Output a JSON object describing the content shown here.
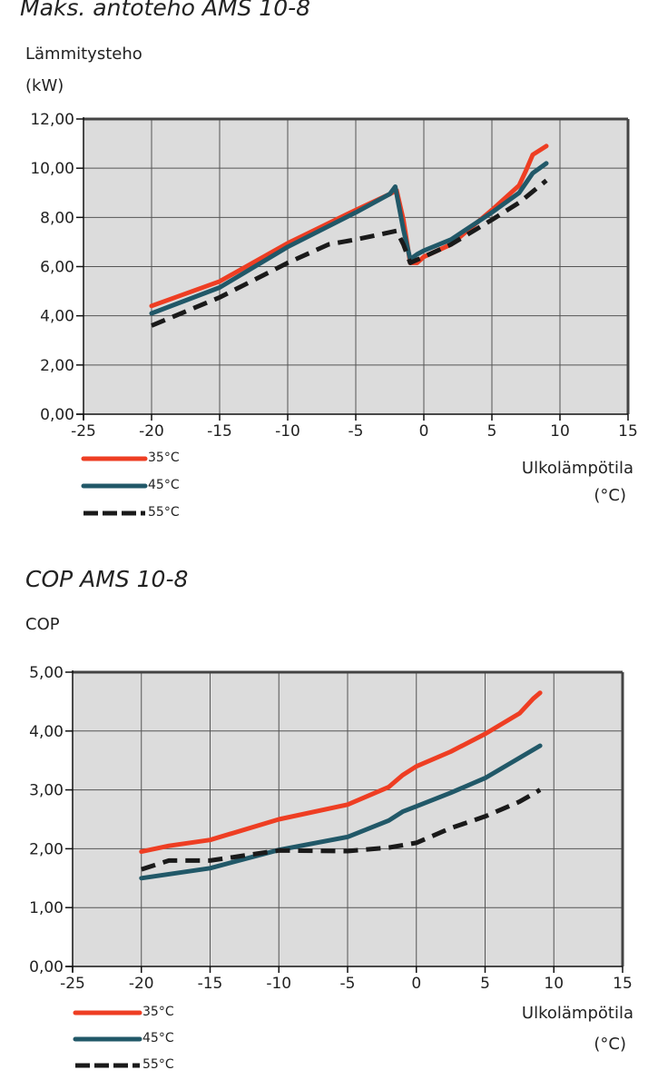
{
  "chart_data": [
    {
      "type": "line",
      "title": "Maks. antoteho AMS 10-8",
      "ylabel": "Lämmitysteho",
      "ylabel_unit": "(kW)",
      "xlabel": "Ulkolämpötila",
      "xlabel_unit": "(°C)",
      "xlim": [
        -25,
        15
      ],
      "ylim": [
        0,
        12
      ],
      "x_ticks": [
        "-25",
        "-20",
        "-15",
        "-10",
        "-5",
        "0",
        "5",
        "10",
        "15"
      ],
      "y_ticks": [
        "0,00",
        "2,00",
        "4,00",
        "6,00",
        "8,00",
        "10,00",
        "12,00"
      ],
      "grid": true,
      "legend_position": "bottom-left",
      "series": [
        {
          "name": "35°C",
          "color": "#ee3e23",
          "style": "solid",
          "x": [
            -20,
            -15,
            -10,
            -5,
            -2.5,
            -2,
            -1.5,
            -1,
            -0.5,
            0,
            2,
            5,
            7,
            7.5,
            8,
            9
          ],
          "y": [
            4.4,
            5.4,
            6.95,
            8.3,
            8.95,
            9.1,
            7.9,
            6.15,
            6.15,
            6.4,
            6.9,
            8.3,
            9.3,
            9.9,
            10.55,
            10.9
          ]
        },
        {
          "name": "45°C",
          "color": "#215868",
          "style": "solid",
          "x": [
            -20,
            -15,
            -10,
            -5,
            -2.5,
            -2.1,
            -1.5,
            -1,
            -0.5,
            0,
            2,
            5,
            7,
            8,
            9
          ],
          "y": [
            4.1,
            5.15,
            6.8,
            8.2,
            8.95,
            9.25,
            7.5,
            6.3,
            6.5,
            6.65,
            7.1,
            8.2,
            9.0,
            9.8,
            10.2
          ]
        },
        {
          "name": "55°C",
          "color": "#1a1a1a",
          "style": "dashed",
          "x": [
            -20,
            -15,
            -10,
            -7,
            -5,
            -2,
            -1.5,
            -1,
            0,
            2,
            5,
            7,
            9
          ],
          "y": [
            3.6,
            4.75,
            6.15,
            6.9,
            7.1,
            7.45,
            6.9,
            6.15,
            6.4,
            6.9,
            7.9,
            8.6,
            9.5
          ]
        }
      ]
    },
    {
      "type": "line",
      "title": "COP AMS 10-8",
      "ylabel": "COP",
      "xlabel": "Ulkolämpötila",
      "xlabel_unit": "(°C)",
      "xlim": [
        -25,
        15
      ],
      "ylim": [
        0,
        5
      ],
      "x_ticks": [
        "-25",
        "-20",
        "-15",
        "-10",
        "-5",
        "0",
        "5",
        "10",
        "15"
      ],
      "y_ticks": [
        "0,00",
        "1,00",
        "2,00",
        "3,00",
        "4,00",
        "5,00"
      ],
      "grid": true,
      "legend_position": "bottom-left",
      "series": [
        {
          "name": "35°C",
          "color": "#ee3e23",
          "style": "solid",
          "x": [
            -20,
            -18,
            -15,
            -10,
            -5,
            -2,
            -1,
            0,
            2.5,
            5,
            7.5,
            8.5,
            9
          ],
          "y": [
            1.95,
            2.05,
            2.15,
            2.5,
            2.75,
            3.05,
            3.25,
            3.4,
            3.65,
            3.95,
            4.3,
            4.55,
            4.65
          ]
        },
        {
          "name": "45°C",
          "color": "#215868",
          "style": "solid",
          "x": [
            -20,
            -15,
            -10,
            -5,
            -2,
            -1,
            0,
            2.5,
            5,
            9
          ],
          "y": [
            1.5,
            1.67,
            1.98,
            2.2,
            2.48,
            2.63,
            2.72,
            2.95,
            3.2,
            3.75
          ]
        },
        {
          "name": "55°C",
          "color": "#1a1a1a",
          "style": "dashed",
          "x": [
            -20,
            -18,
            -15,
            -10,
            -5,
            -2,
            0,
            2.5,
            5,
            7.5,
            9
          ],
          "y": [
            1.65,
            1.8,
            1.8,
            1.97,
            1.96,
            2.02,
            2.1,
            2.35,
            2.55,
            2.8,
            3.0
          ]
        }
      ]
    }
  ]
}
